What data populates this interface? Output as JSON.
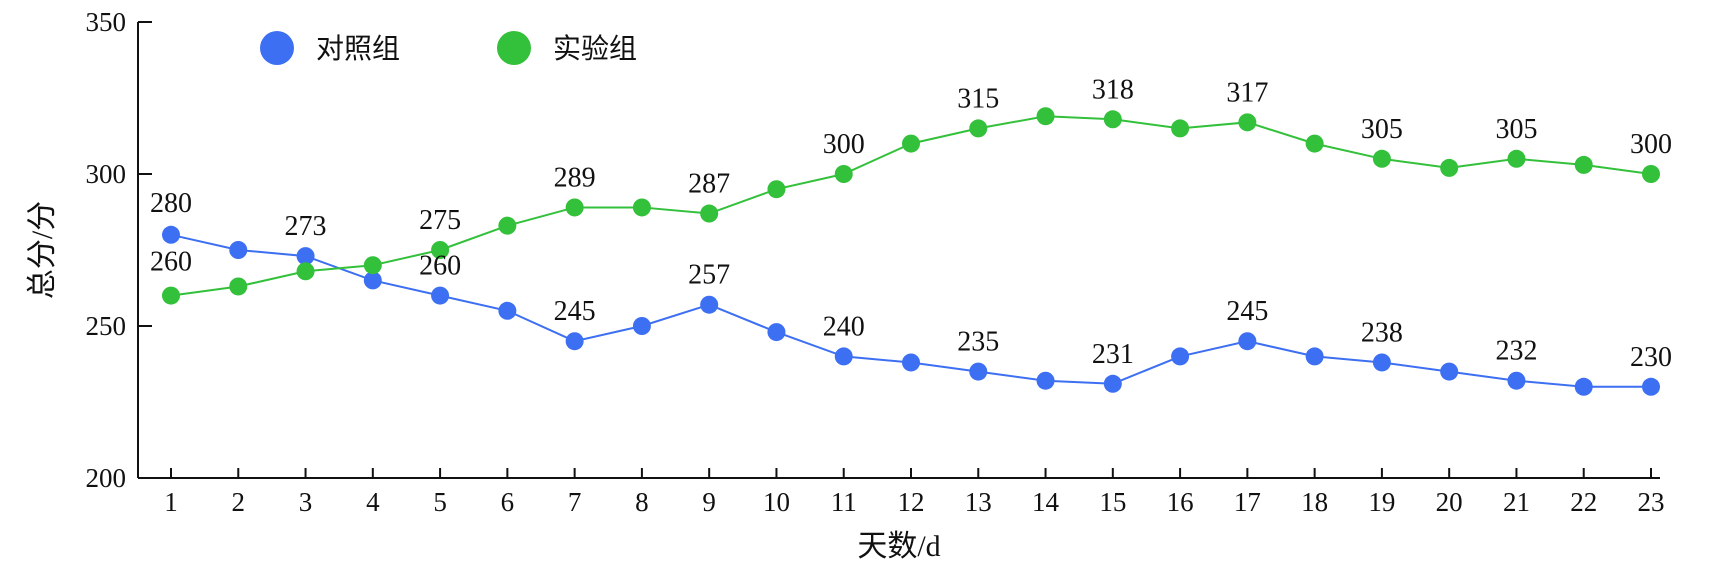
{
  "chart_data": {
    "type": "line",
    "title": "",
    "xlabel": "天数/d",
    "ylabel": "总分/分",
    "x": [
      1,
      2,
      3,
      4,
      5,
      6,
      7,
      8,
      9,
      10,
      11,
      12,
      13,
      14,
      15,
      16,
      17,
      18,
      19,
      20,
      21,
      22,
      23
    ],
    "ylim": [
      200,
      350
    ],
    "yticks": [
      200,
      250,
      300,
      350
    ],
    "grid": false,
    "legend_position": "top-left",
    "series": [
      {
        "name": "对照组",
        "color": "#3d6ff2",
        "values": [
          280,
          275,
          273,
          265,
          260,
          255,
          245,
          250,
          257,
          248,
          240,
          238,
          235,
          232,
          231,
          240,
          245,
          240,
          238,
          235,
          232,
          230,
          230
        ],
        "data_labels": [
          {
            "x": 1,
            "label": "280"
          },
          {
            "x": 3,
            "label": "273"
          },
          {
            "x": 5,
            "label": "260"
          },
          {
            "x": 7,
            "label": "245"
          },
          {
            "x": 9,
            "label": "257"
          },
          {
            "x": 11,
            "label": "240"
          },
          {
            "x": 13,
            "label": "235"
          },
          {
            "x": 15,
            "label": "231"
          },
          {
            "x": 17,
            "label": "245"
          },
          {
            "x": 19,
            "label": "238"
          },
          {
            "x": 21,
            "label": "232"
          },
          {
            "x": 23,
            "label": "230"
          }
        ]
      },
      {
        "name": "实验组",
        "color": "#33c03a",
        "values": [
          260,
          263,
          268,
          270,
          275,
          283,
          289,
          289,
          287,
          295,
          300,
          310,
          315,
          319,
          318,
          315,
          317,
          310,
          305,
          302,
          305,
          303,
          300
        ],
        "data_labels": [
          {
            "x": 1,
            "label": "260"
          },
          {
            "x": 5,
            "label": "275"
          },
          {
            "x": 7,
            "label": "289"
          },
          {
            "x": 9,
            "label": "287"
          },
          {
            "x": 11,
            "label": "300"
          },
          {
            "x": 13,
            "label": "315"
          },
          {
            "x": 15,
            "label": "318"
          },
          {
            "x": 17,
            "label": "317"
          },
          {
            "x": 19,
            "label": "305"
          },
          {
            "x": 21,
            "label": "305"
          },
          {
            "x": 23,
            "label": "300"
          }
        ]
      }
    ]
  }
}
